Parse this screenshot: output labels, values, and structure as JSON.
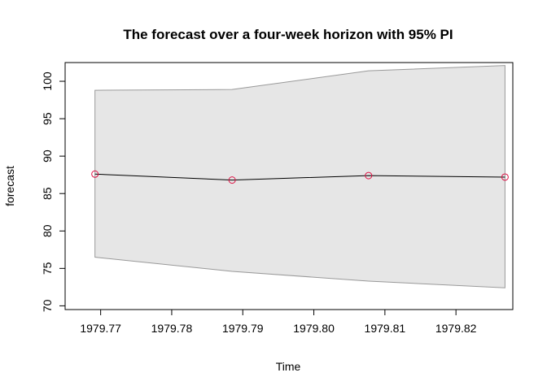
{
  "chart_data": {
    "type": "line",
    "title": "The forecast over a four-week horizon with 95% PI",
    "xlabel": "Time",
    "ylabel": "forecast",
    "xlim": [
      1979.765,
      1979.828
    ],
    "ylim": [
      69.5,
      102.5
    ],
    "x_ticks": [
      1979.77,
      1979.78,
      1979.79,
      1979.8,
      1979.81,
      1979.82
    ],
    "x_tick_labels": [
      "1979.77",
      "1979.78",
      "1979.79",
      "1979.80",
      "1979.81",
      "1979.82"
    ],
    "y_ticks": [
      70,
      75,
      80,
      85,
      90,
      95,
      100
    ],
    "y_tick_labels": [
      "70",
      "75",
      "80",
      "85",
      "90",
      "95",
      "100"
    ],
    "grid": false,
    "x": [
      1979.7692,
      1979.7885,
      1979.8077,
      1979.8269
    ],
    "forecast": [
      87.6,
      86.8,
      87.4,
      87.2
    ],
    "lower": [
      76.5,
      74.6,
      73.3,
      72.4
    ],
    "upper": [
      98.8,
      98.9,
      101.4,
      102.1
    ],
    "colors": {
      "band_fill": "#e6e6e6",
      "band_stroke": "#999999",
      "line": "#000000",
      "points": "#dd1144"
    }
  }
}
